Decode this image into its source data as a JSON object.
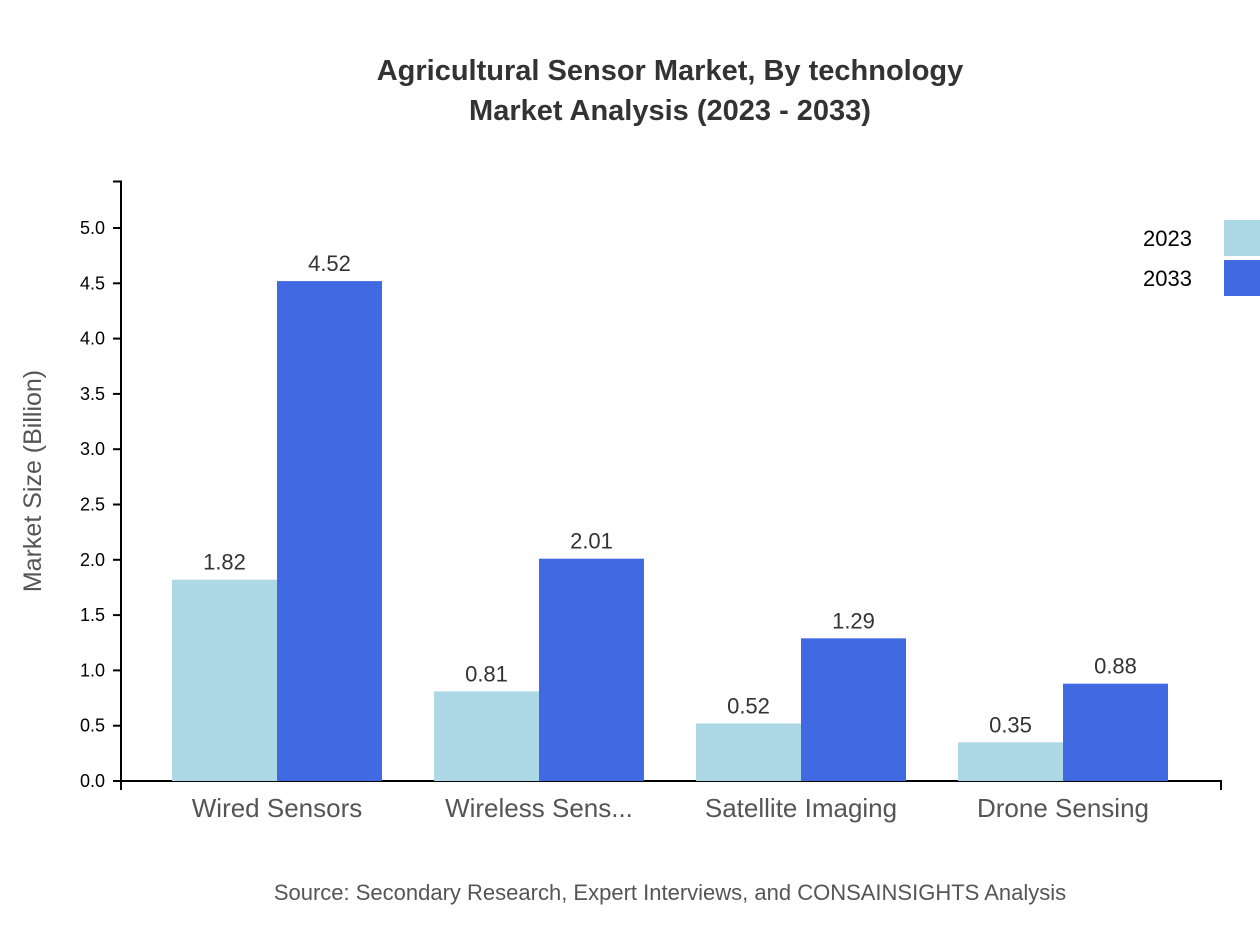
{
  "chart_data": {
    "type": "bar",
    "title": "Agricultural Sensor Market, By technology",
    "subtitle": "Market Analysis (2023 - 2033)",
    "xlabel": "",
    "ylabel": "Market Size (Billion)",
    "ylim": [
      0,
      5.42
    ],
    "yticks": [
      "0.0",
      "0.5",
      "1.0",
      "1.5",
      "2.0",
      "2.5",
      "3.0",
      "3.5",
      "4.0",
      "4.5",
      "5.0"
    ],
    "categories": [
      "Wired Sensors",
      "Wireless Sens...",
      "Satellite Imaging",
      "Drone Sensing"
    ],
    "series": [
      {
        "name": "2023",
        "color": "#add8e6",
        "values": [
          1.82,
          0.81,
          0.52,
          0.35
        ],
        "labels": [
          "1.82",
          "0.81",
          "0.52",
          "0.35"
        ]
      },
      {
        "name": "2033",
        "color": "#4169e1",
        "values": [
          4.52,
          2.01,
          1.29,
          0.88
        ],
        "labels": [
          "4.52",
          "2.01",
          "1.29",
          "0.88"
        ]
      }
    ],
    "legend_position": "top-right",
    "grid": false,
    "source": "Source: Secondary Research, Expert Interviews, and CONSAINSIGHTS Analysis"
  }
}
